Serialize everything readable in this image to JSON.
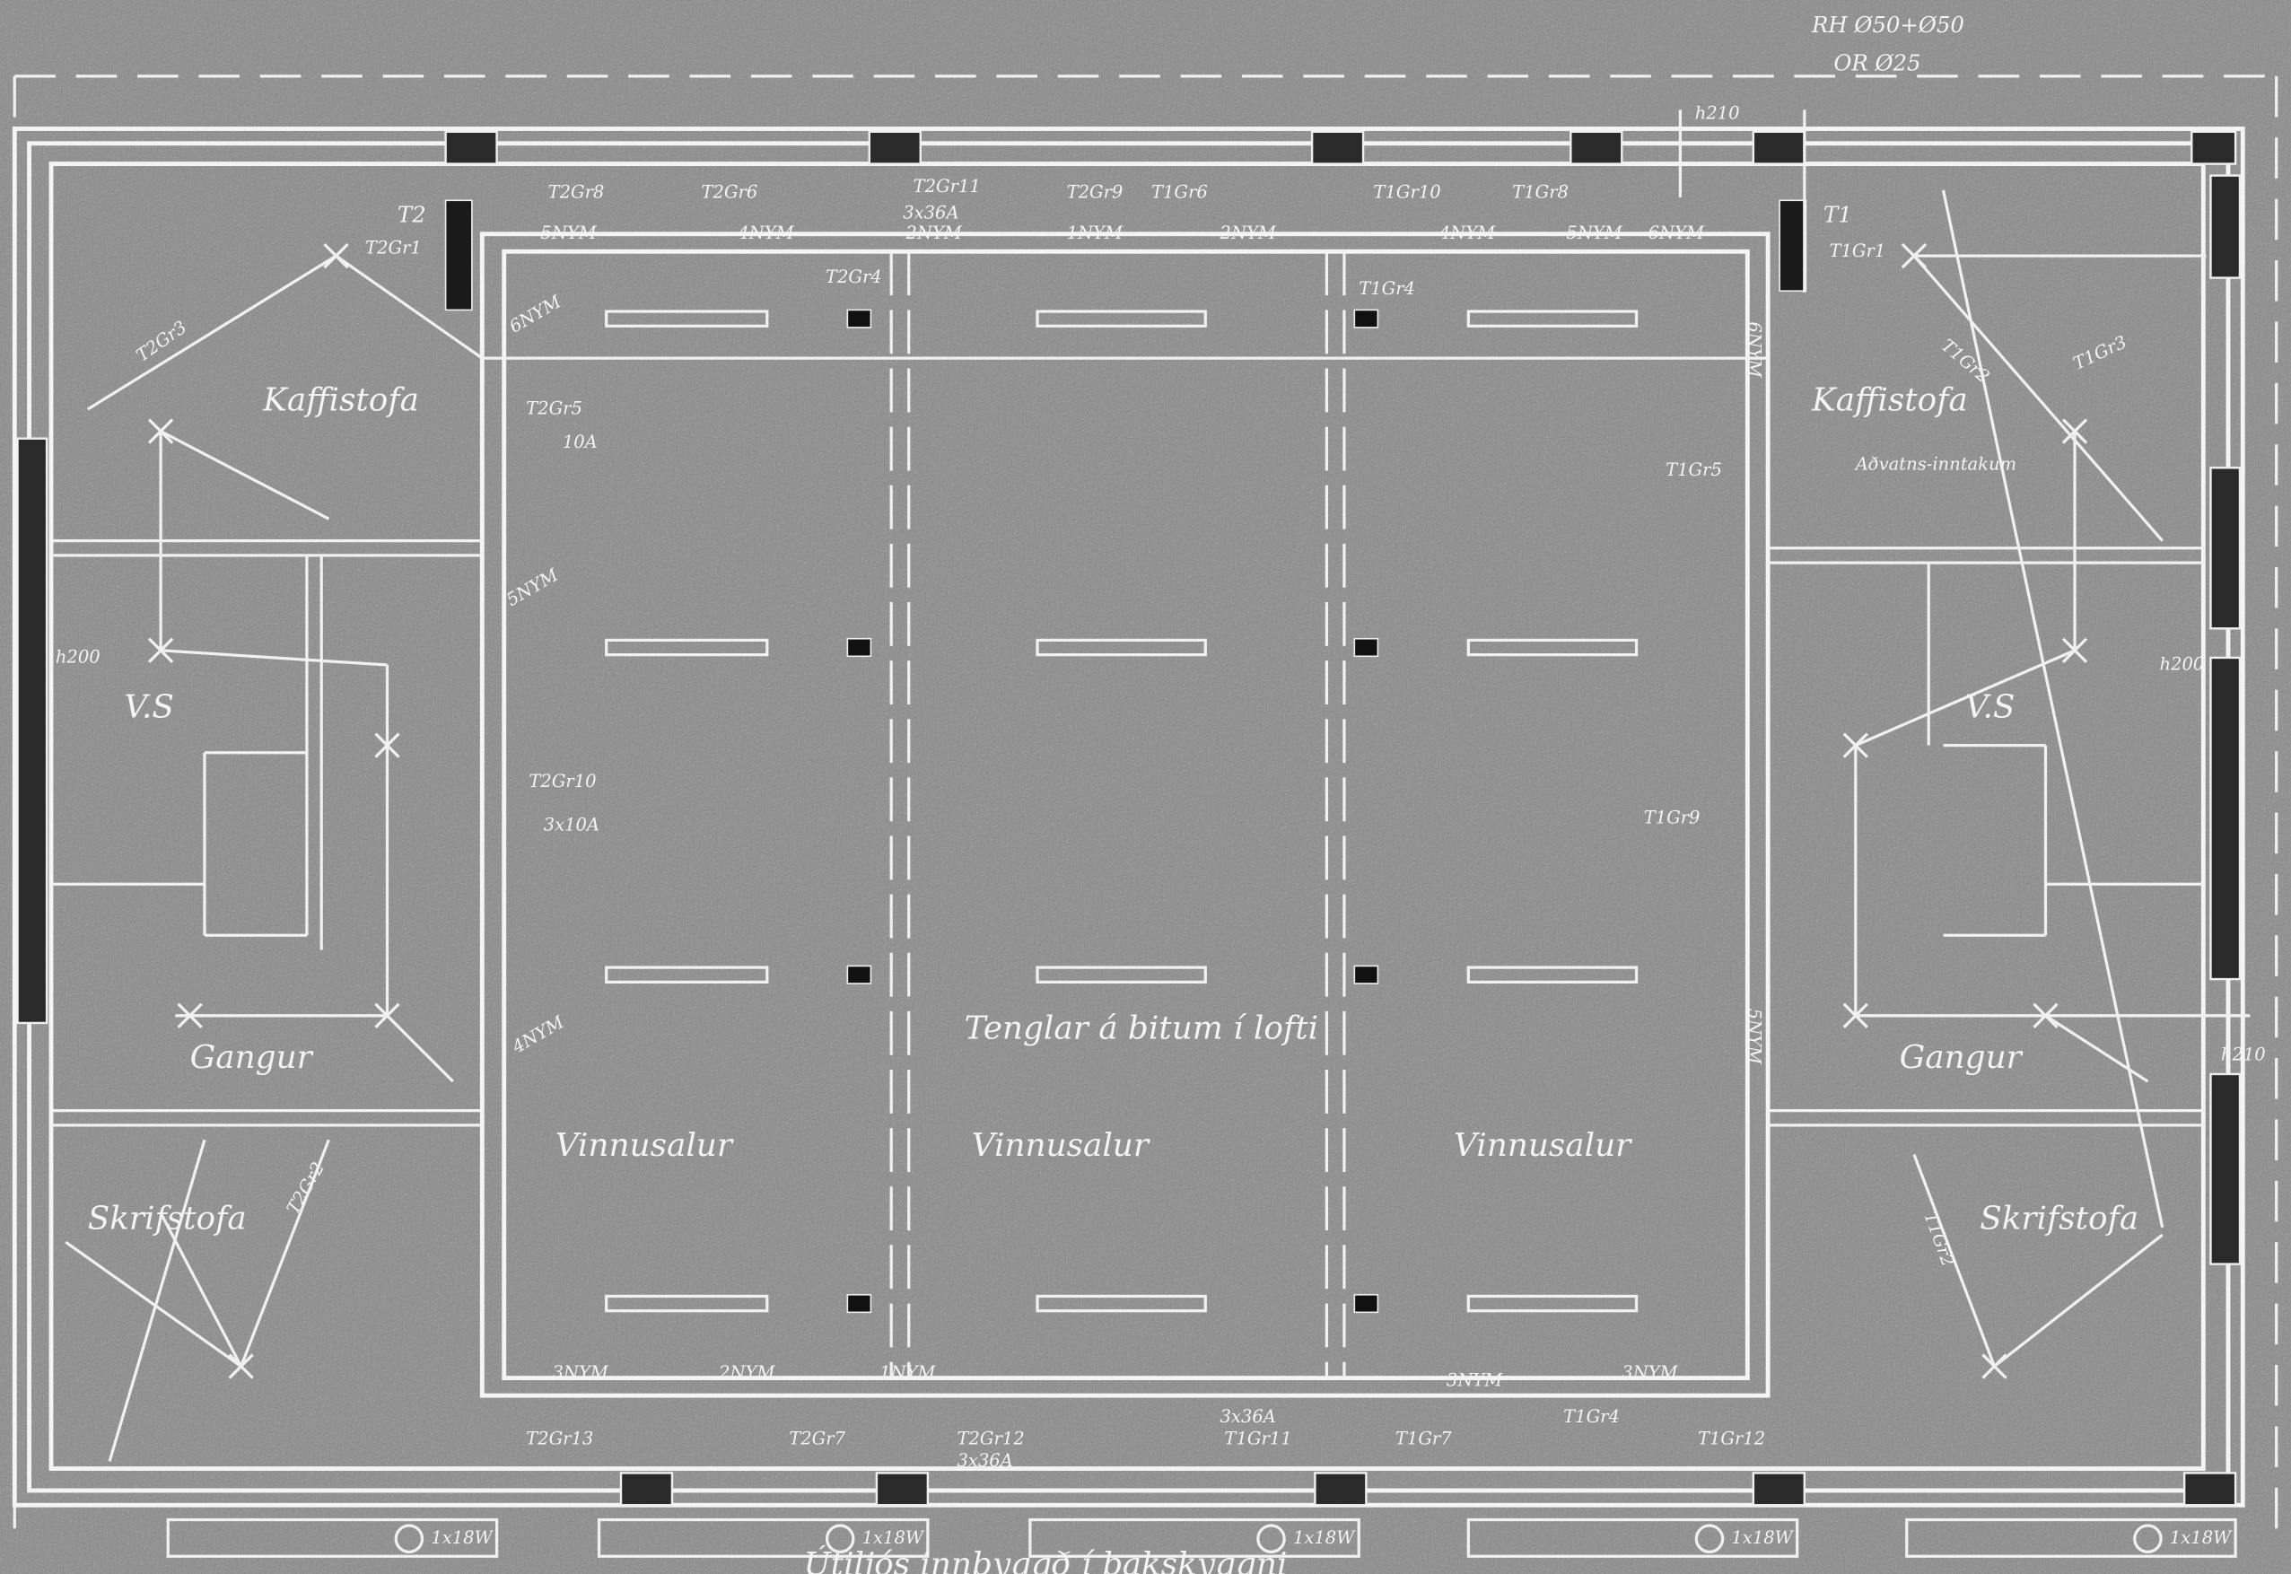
{
  "header": {
    "pipe_rh": "RH Ø50+Ø50",
    "pipe_or": "OR Ø25"
  },
  "panels": [
    "T2",
    "T1"
  ],
  "rooms": [
    "Kaffistofa",
    "Kaffistofa",
    "V.S",
    "V.S",
    "Gangur",
    "Gangur",
    "Skrifstofa",
    "Skrifstofa",
    "Vinnusalur",
    "Vinnusalur",
    "Vinnusalur"
  ],
  "notes": [
    "Tenglar á bitum í lofti",
    "Útiljós innbyggð í þakskyggni",
    "Aðvatns-inntakum"
  ],
  "circuits": [
    "T2Gr1",
    "T2Gr3",
    "T2Gr5",
    "10A",
    "T2Gr10",
    "3x10A",
    "T2Gr8",
    "T2Gr6",
    "T2Gr9",
    "T2Gr11",
    "3x36A",
    "T1Gr6",
    "T1Gr10",
    "T1Gr8",
    "T2Gr4",
    "T1Gr4",
    "T1Gr1",
    "T1Gr3",
    "T1Gr2",
    "T1Gr5",
    "T1Gr9",
    "T2Gr2",
    "T1Gr2",
    "T2Gr13",
    "T2Gr7",
    "T2Gr12",
    "T1Gr11",
    "T1Gr7",
    "T1Gr4",
    "T1Gr12",
    "3x36A",
    "3x36A"
  ],
  "cables": [
    "5NYM",
    "4NYM",
    "2NYM",
    "1NYM",
    "2NYM",
    "4NYM",
    "5NYM",
    "6NYM",
    "6NYM",
    "5NYM",
    "4NYM",
    "3NYM",
    "2NYM",
    "1NYM",
    "3NYM",
    "3NYM",
    "6NYM",
    "5NYM"
  ],
  "heights": [
    "h210",
    "h200",
    "h200",
    "h210"
  ],
  "lamps": [
    "1x18W",
    "1x18W",
    "1x18W",
    "1x18W",
    "1x18W"
  ]
}
